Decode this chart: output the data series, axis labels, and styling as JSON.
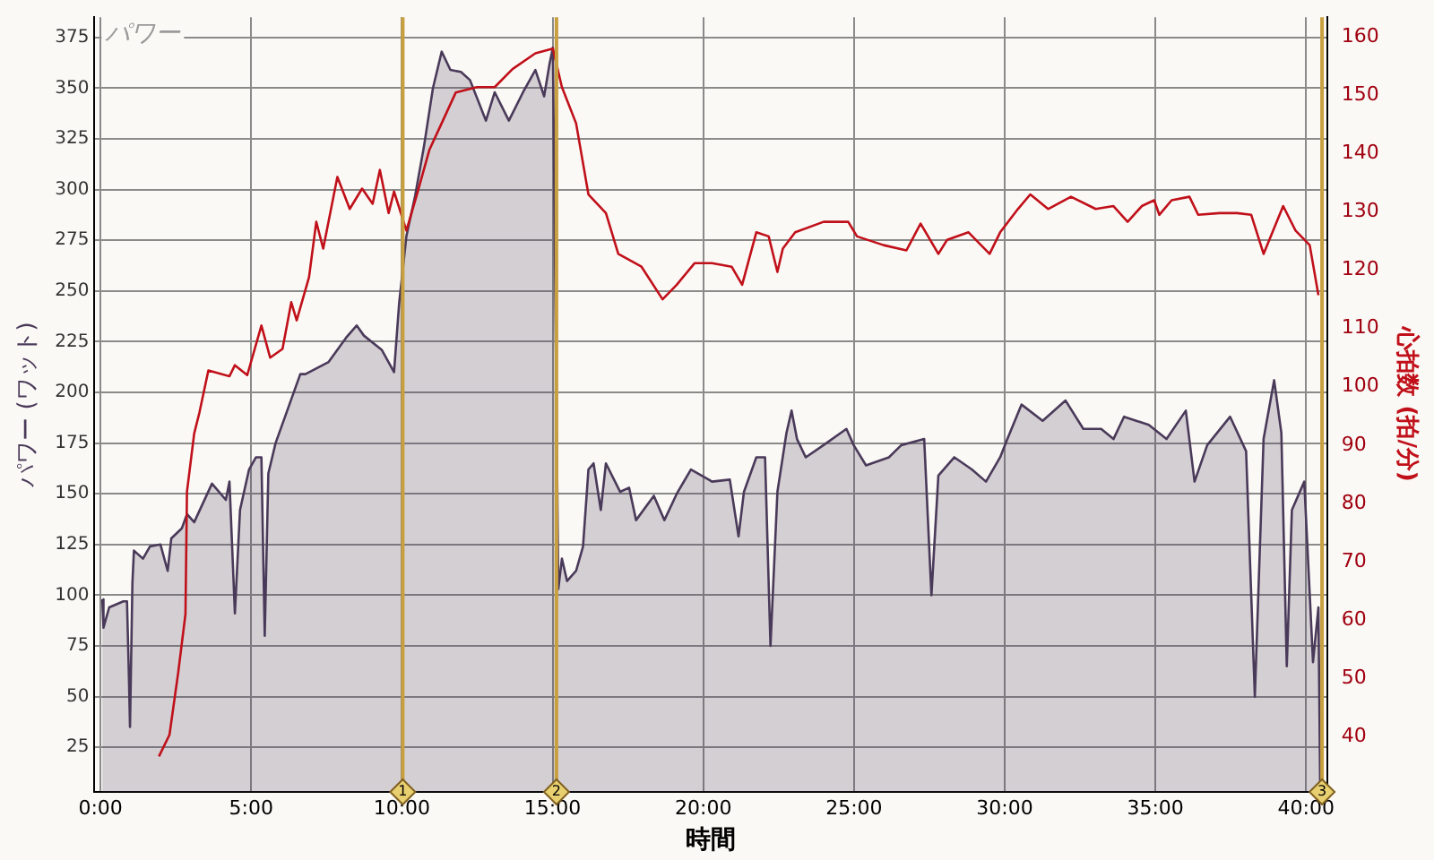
{
  "chart_data": {
    "type": "area",
    "title": "パワー",
    "xlabel": "時間",
    "ylabel": "パワー (ワット)",
    "y2label": "心拍数 (拍/分)",
    "xlim": [
      -0.2,
      40.7
    ],
    "xticks": [
      {
        "value": 0,
        "label": "0:00"
      },
      {
        "value": 5,
        "label": "5:00"
      },
      {
        "value": 10,
        "label": "10:00"
      },
      {
        "value": 15,
        "label": "15:00"
      },
      {
        "value": 20,
        "label": "20:00"
      },
      {
        "value": 25,
        "label": "25:00"
      },
      {
        "value": 30,
        "label": "30:00"
      },
      {
        "value": 35,
        "label": "35:00"
      },
      {
        "value": 40,
        "label": "40:00"
      }
    ],
    "ylim": [
      3,
      385
    ],
    "yticks": [
      25,
      50,
      75,
      100,
      125,
      150,
      175,
      200,
      225,
      250,
      275,
      300,
      325,
      350,
      375
    ],
    "y2lim": [
      30.5,
      163.4
    ],
    "y2ticks": [
      40,
      50,
      60,
      70,
      80,
      90,
      100,
      110,
      120,
      130,
      140,
      150,
      160
    ],
    "grid": true,
    "legend": false,
    "marker": "none",
    "line_style": "solid",
    "ref_lines": [
      {
        "axis": "x",
        "value": 10.03,
        "color": "#c8a040"
      },
      {
        "axis": "x",
        "value": 15.13,
        "color": "#c8a040"
      },
      {
        "axis": "x",
        "value": 40.53,
        "color": "#c8a040"
      }
    ],
    "series": [
      {
        "type": "area",
        "color": "#4a3a5a",
        "x": [
          0.06,
          0.1,
          0.29,
          0.76,
          0.88,
          0.94,
          0.98,
          1.06,
          1.11,
          1.41,
          1.64,
          1.99,
          2.23,
          2.35,
          2.7,
          2.87,
          3.11,
          3.7,
          4.16,
          4.28,
          4.46,
          4.63,
          4.93,
          5.16,
          5.34,
          5.45,
          5.57,
          5.81,
          6.63,
          6.8,
          7.57,
          8.15,
          8.5,
          8.74,
          9.33,
          9.74,
          9.91,
          10.15,
          10.44,
          10.73,
          11.03,
          11.32,
          11.61,
          11.96,
          12.26,
          12.79,
          13.08,
          13.55,
          14.02,
          14.43,
          14.72,
          14.9,
          15.01,
          15.19,
          15.31,
          15.48,
          15.78,
          16.01,
          16.19,
          16.36,
          16.6,
          16.77,
          17.24,
          17.54,
          17.77,
          18.36,
          18.71,
          19.12,
          19.59,
          20.18,
          20.29,
          20.88,
          21.17,
          21.35,
          21.76,
          22.05,
          22.23,
          22.46,
          22.76,
          22.93,
          23.11,
          23.4,
          23.99,
          24.75,
          24.99,
          25.4,
          26.16,
          26.57,
          27.33,
          27.57,
          27.8,
          28.33,
          28.91,
          29.38,
          29.85,
          30.09,
          30.56,
          31.26,
          32.02,
          32.61,
          33.2,
          33.61,
          33.96,
          34.78,
          35.37,
          36.01,
          36.3,
          36.72,
          37.48,
          38.01,
          38.3,
          38.59,
          38.94,
          39.18,
          39.36,
          39.53,
          39.94,
          40.23,
          40.41,
          40.47
        ],
        "values": [
          98,
          84,
          94,
          97,
          97,
          62,
          35,
          106,
          122,
          118,
          124,
          125,
          112,
          128,
          133,
          140,
          136,
          155,
          147,
          156,
          91,
          142,
          162,
          168,
          168,
          80,
          160,
          175,
          209,
          209,
          215,
          227,
          233,
          228,
          221,
          210,
          244,
          277,
          297,
          321,
          350,
          368,
          359,
          358,
          354,
          334,
          348,
          334,
          348,
          359,
          346,
          362,
          370,
          103,
          118,
          107,
          112,
          124,
          162,
          165,
          142,
          165,
          151,
          153,
          137,
          149,
          137,
          150,
          162,
          157,
          156,
          157,
          129,
          151,
          168,
          168,
          75,
          151,
          180,
          191,
          177,
          168,
          174,
          182,
          174,
          164,
          168,
          174,
          177,
          100,
          159,
          168,
          162,
          156,
          168,
          177,
          194,
          186,
          196,
          182,
          182,
          177,
          188,
          184,
          177,
          191,
          156,
          174,
          188,
          171,
          50,
          177,
          206,
          180,
          65,
          142,
          156,
          67,
          94,
          3
        ]
      },
      {
        "type": "line",
        "axis": "y2",
        "color": "#c0101a",
        "x": [
          1.94,
          2.29,
          2.58,
          2.82,
          2.87,
          3.11,
          3.28,
          3.58,
          4.28,
          4.46,
          4.87,
          5.34,
          5.63,
          6.04,
          6.33,
          6.51,
          6.92,
          7.16,
          7.39,
          7.86,
          8.27,
          8.68,
          9.03,
          9.27,
          9.56,
          9.74,
          10.15,
          10.5,
          10.91,
          11.32,
          11.79,
          12.49,
          13.08,
          13.67,
          14.43,
          15.01,
          15.31,
          15.78,
          16.19,
          16.77,
          17.18,
          17.95,
          18.65,
          19.12,
          19.71,
          20.29,
          20.94,
          21.29,
          21.76,
          22.17,
          22.46,
          22.64,
          23.05,
          23.99,
          24.81,
          25.1,
          25.98,
          26.74,
          27.21,
          27.8,
          28.09,
          28.8,
          29.5,
          29.85,
          30.44,
          30.85,
          31.44,
          32.2,
          33.02,
          33.61,
          34.08,
          34.55,
          34.96,
          35.13,
          35.54,
          36.13,
          36.42,
          37.13,
          37.71,
          38.18,
          38.59,
          39.24,
          39.65,
          40.12,
          40.41
        ],
        "values": [
          36.6,
          40.3,
          51,
          61,
          82,
          92,
          95.5,
          102.8,
          101.8,
          103.7,
          102,
          110.5,
          105,
          106.5,
          114.5,
          111.4,
          118.8,
          128.3,
          123.7,
          136,
          130.5,
          134,
          131.4,
          137.2,
          129.8,
          133.5,
          126.8,
          133,
          140.6,
          145.2,
          150.5,
          151.4,
          151.4,
          154.5,
          157.2,
          158,
          151.4,
          145.2,
          133,
          129.8,
          122.8,
          120.6,
          115,
          117.5,
          121.2,
          121.2,
          120.6,
          117.5,
          126.5,
          125.8,
          119.7,
          123.7,
          126.5,
          128.3,
          128.3,
          125.8,
          124.3,
          123.4,
          128,
          122.8,
          125.2,
          126.5,
          122.8,
          126.5,
          130.5,
          133,
          130.5,
          132.6,
          130.5,
          131,
          128.3,
          131,
          132,
          129.5,
          132,
          132.6,
          129.5,
          129.8,
          129.8,
          129.5,
          122.8,
          131,
          126.8,
          124.3,
          115.7
        ]
      }
    ],
    "annotations": [
      {
        "text": "1",
        "x": 10.03,
        "y": 3
      },
      {
        "text": "2",
        "x": 15.13,
        "y": 3
      },
      {
        "text": "3",
        "x": 40.53,
        "y": 3
      }
    ]
  }
}
